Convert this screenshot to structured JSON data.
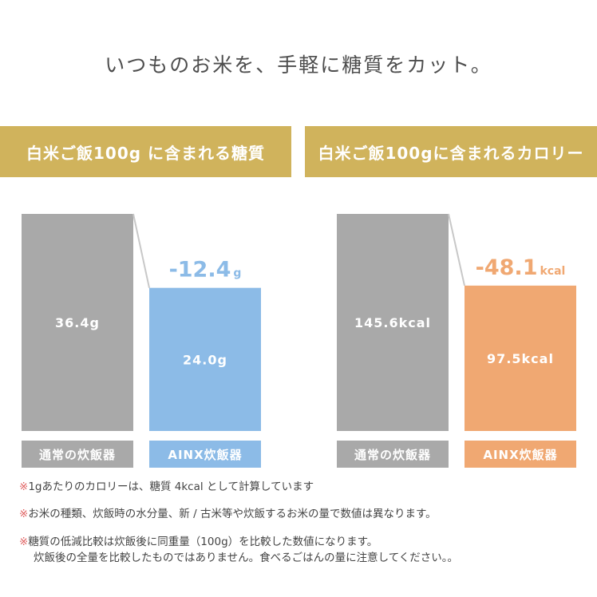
{
  "headline": "いつものお米を、手軽に糖質をカット。",
  "colors": {
    "gold": "#d0b35c",
    "gray": "#a9a9a9",
    "blue": "#8cbbe7",
    "orange": "#f0a872",
    "connector": "#c8c8c8",
    "note_mark": "#e06060"
  },
  "chart_data": [
    {
      "type": "bar",
      "title": "白米ご飯100g に含まれる糖質",
      "categories": [
        "通常の炊飯器",
        "AINX炊飯器"
      ],
      "values": [
        36.4,
        24.0
      ],
      "value_labels": [
        "36.4g",
        "24.0g"
      ],
      "difference": {
        "value": "-12.4",
        "unit": "g"
      },
      "colors": [
        "#a9a9a9",
        "#8cbbe7"
      ],
      "ylim": [
        0,
        36.4
      ]
    },
    {
      "type": "bar",
      "title": "白米ご飯100gに含まれるカロリー",
      "categories": [
        "通常の炊飯器",
        "AINX炊飯器"
      ],
      "values": [
        145.6,
        97.5
      ],
      "value_labels": [
        "145.6kcal",
        "97.5kcal"
      ],
      "difference": {
        "value": "-48.1",
        "unit": "kcal"
      },
      "colors": [
        "#a9a9a9",
        "#f0a872"
      ],
      "ylim": [
        0,
        145.6
      ]
    }
  ],
  "notes": [
    {
      "mark": "※",
      "lines": [
        "1gあたりのカロリーは、糖質 4kcal として計算しています"
      ]
    },
    {
      "mark": "※",
      "lines": [
        "お米の種類、炊飯時の水分量、新 / 古米等や炊飯するお米の量で数値は異なります。"
      ]
    },
    {
      "mark": "※",
      "lines": [
        "糖質の低減比較は炊飯後に同重量（100g）を比較した数値になります。",
        "炊飯後の全量を比較したものではありません。食べるごはんの量に注意してください。。"
      ]
    }
  ]
}
